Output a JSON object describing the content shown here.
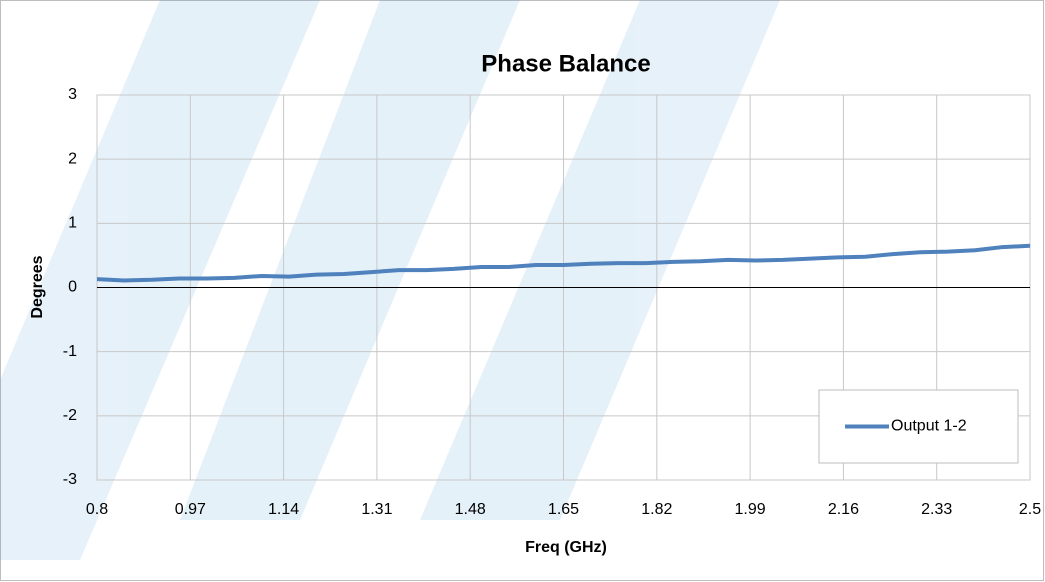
{
  "chart_data": {
    "type": "line",
    "title": "Phase Balance",
    "x_label": "Freq (GHz)",
    "y_label": "Degrees",
    "x": [
      0.8,
      0.85,
      0.9,
      0.95,
      1.0,
      1.05,
      1.1,
      1.15,
      1.2,
      1.25,
      1.3,
      1.35,
      1.4,
      1.45,
      1.5,
      1.55,
      1.6,
      1.65,
      1.7,
      1.75,
      1.8,
      1.85,
      1.9,
      1.95,
      2.0,
      2.05,
      2.1,
      2.15,
      2.2,
      2.25,
      2.3,
      2.35,
      2.4,
      2.45,
      2.5
    ],
    "series": [
      {
        "name": "Output 1-2",
        "color": "#4f81bd",
        "values": [
          0.13,
          0.11,
          0.12,
          0.14,
          0.14,
          0.15,
          0.18,
          0.17,
          0.2,
          0.21,
          0.24,
          0.27,
          0.27,
          0.29,
          0.32,
          0.32,
          0.35,
          0.35,
          0.37,
          0.38,
          0.38,
          0.4,
          0.41,
          0.43,
          0.42,
          0.43,
          0.45,
          0.47,
          0.48,
          0.52,
          0.55,
          0.56,
          0.58,
          0.63,
          0.65
        ]
      }
    ],
    "xlim": [
      0.8,
      2.5
    ],
    "xticks": [
      0.8,
      0.97,
      1.14,
      1.31,
      1.48,
      1.65,
      1.82,
      1.99,
      2.16,
      2.33,
      2.5
    ],
    "ylim": [
      -3,
      3
    ],
    "yticks": [
      -3,
      -2,
      -1,
      0,
      1,
      2,
      3
    ],
    "grid": true,
    "legend": "lower right"
  }
}
